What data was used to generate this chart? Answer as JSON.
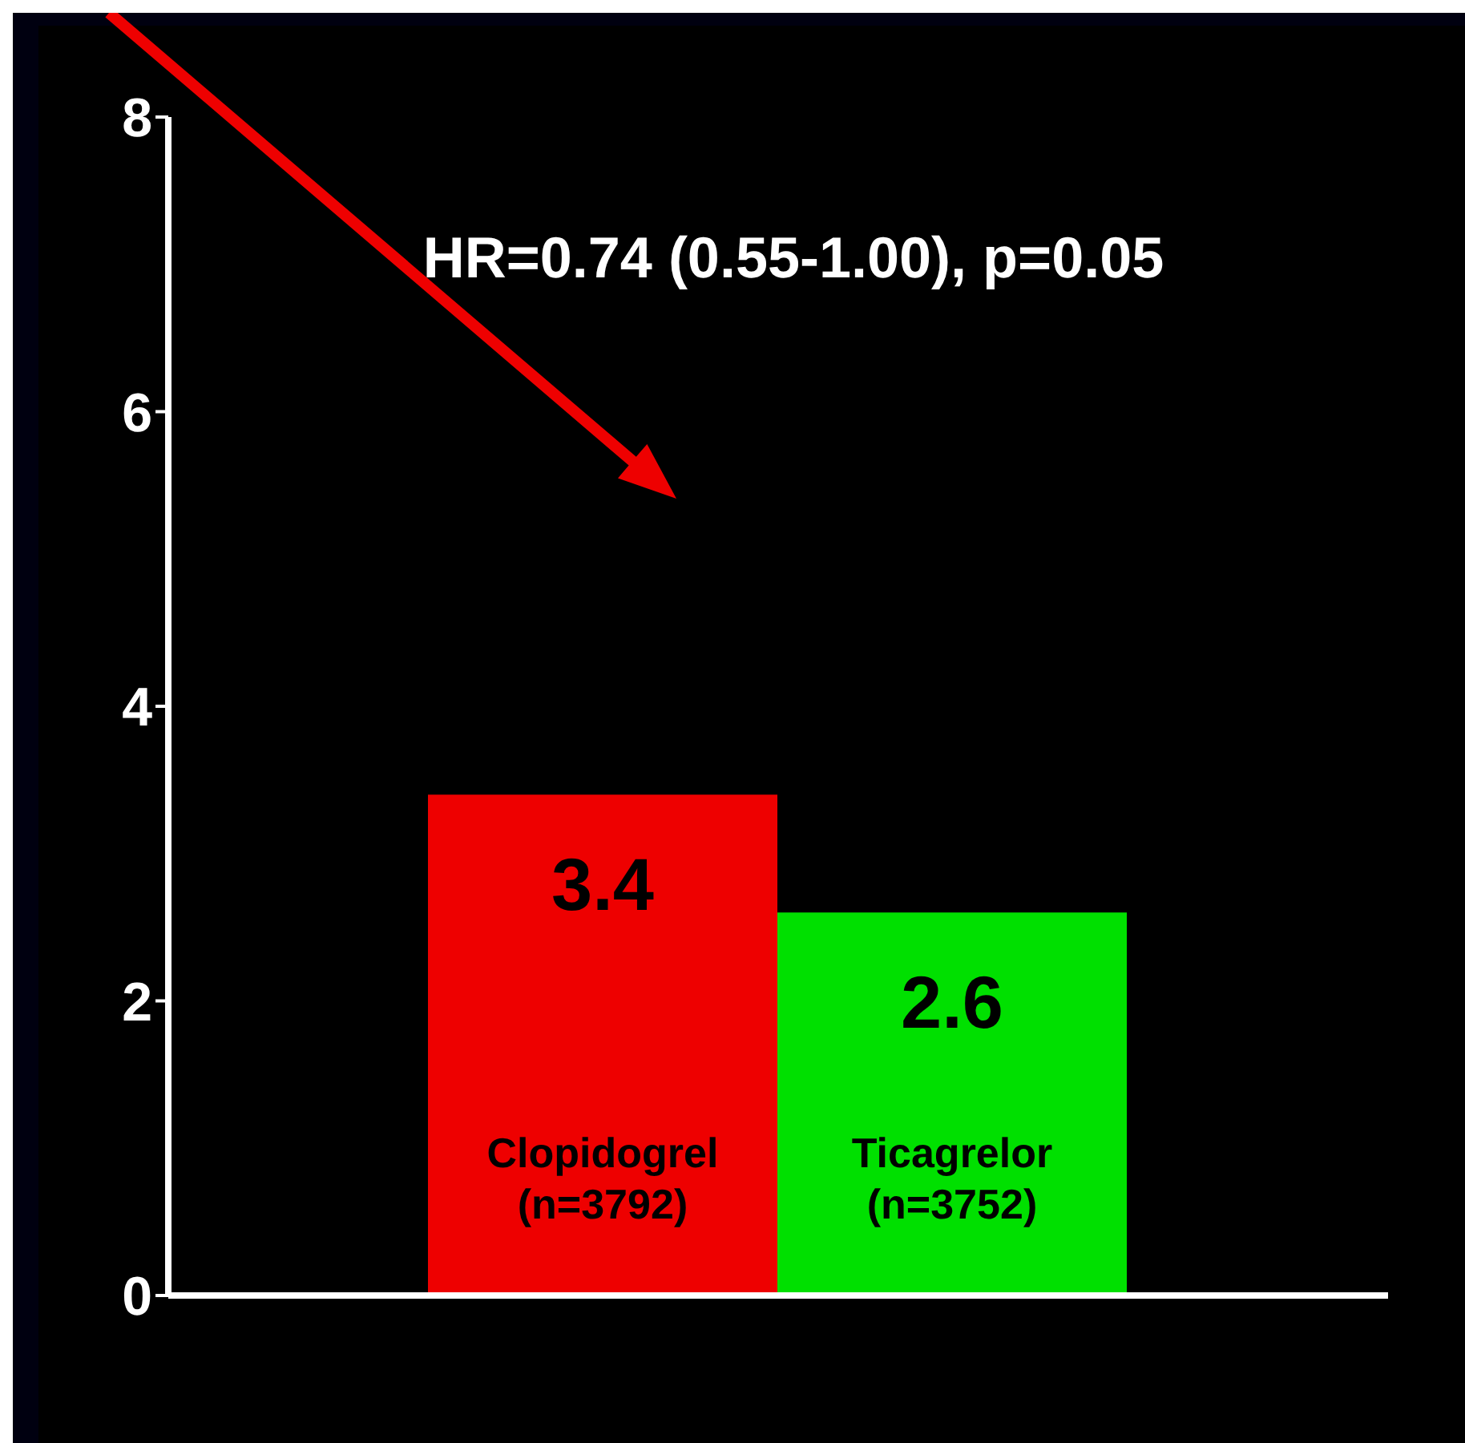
{
  "chart_data": {
    "type": "bar",
    "annotations": [
      "HR=0.74 (0.55-1.00), p=0.05"
    ],
    "categories": [
      "Clopidogrel (n=3792)",
      "Ticagrelor (n=3752)"
    ],
    "values": [
      3.4,
      2.6
    ],
    "colors": [
      "#ee0000",
      "#00e000"
    ],
    "ylim": [
      0,
      8
    ],
    "tick_labels": "y",
    "yticks": [
      0,
      2,
      4,
      6,
      8
    ],
    "data_labels": true,
    "grid": false,
    "legend": false
  }
}
